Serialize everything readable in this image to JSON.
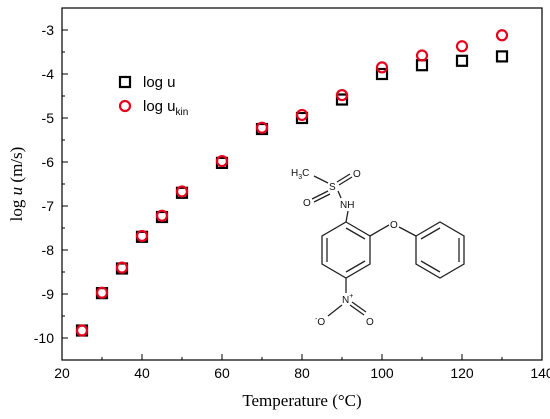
{
  "chart_data": {
    "type": "scatter",
    "xlabel": "Temperature (°C)",
    "ylabel_prefix": "log ",
    "ylabel_var": "u",
    "ylabel_suffix": " (m/s)",
    "xlim": [
      20,
      140
    ],
    "ylim": [
      -10.5,
      -2.5
    ],
    "x_ticks": [
      "20",
      "40",
      "60",
      "80",
      "100",
      "120",
      "140"
    ],
    "y_ticks": [
      "-10",
      "-9",
      "-8",
      "-7",
      "-6",
      "-5",
      "-4",
      "-3"
    ],
    "series": [
      {
        "name": "log u",
        "marker": "square",
        "color": "#000000",
        "x": [
          25,
          30,
          35,
          40,
          45,
          50,
          60,
          70,
          80,
          90,
          100,
          110,
          120,
          130
        ],
        "y": [
          -9.83,
          -8.98,
          -8.42,
          -7.7,
          -7.25,
          -6.7,
          -6.02,
          -5.25,
          -5.0,
          -4.58,
          -4.0,
          -3.8,
          -3.7,
          -3.6
        ]
      },
      {
        "name_main": "log u",
        "name_sub": "kin",
        "marker": "circle",
        "color": "#e8001c",
        "x": [
          25,
          30,
          35,
          40,
          45,
          50,
          60,
          70,
          80,
          90,
          100,
          110,
          120,
          130
        ],
        "y": [
          -9.83,
          -8.97,
          -8.4,
          -7.68,
          -7.22,
          -6.67,
          -5.98,
          -5.22,
          -4.93,
          -4.48,
          -3.85,
          -3.58,
          -3.37,
          -3.12
        ]
      }
    ],
    "legend_placement": "upper-left",
    "grid": false
  },
  "molecule": {
    "labels": {
      "h3c": "H",
      "h3c_sub": "3",
      "h3c_c": "C",
      "s": "S",
      "o_top": "O",
      "o_left": "O",
      "nh": "NH",
      "o_ether": "O",
      "n_nitro": "N",
      "n_charge": "+",
      "o_nitro_minus": "-",
      "o_nitro_left": "O",
      "o_nitro_right": "O"
    }
  }
}
